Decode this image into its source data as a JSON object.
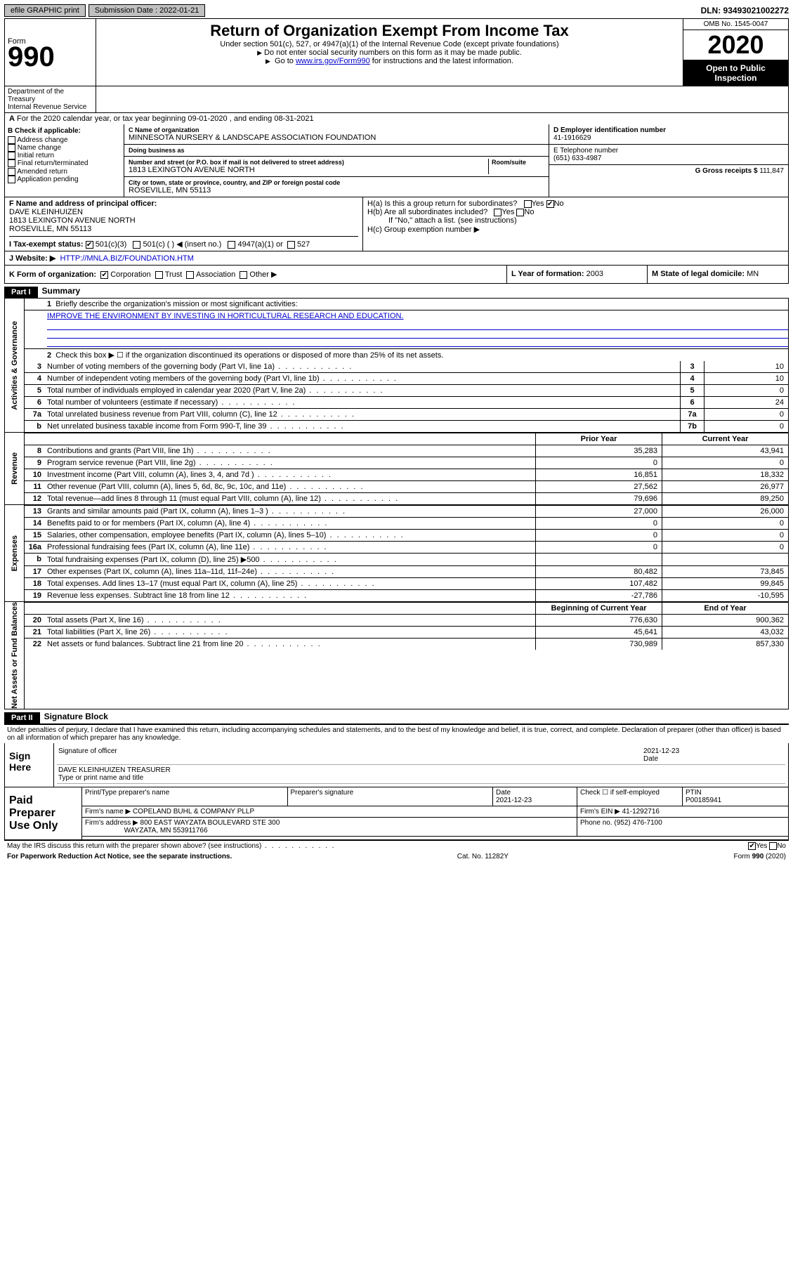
{
  "topbar": {
    "efile": "efile GRAPHIC print",
    "submission_label": "Submission Date : 2022-01-21",
    "dln": "DLN: 93493021002272"
  },
  "header": {
    "form_word": "Form",
    "form_num": "990",
    "title": "Return of Organization Exempt From Income Tax",
    "subtitle1": "Under section 501(c), 527, or 4947(a)(1) of the Internal Revenue Code (except private foundations)",
    "subtitle2": "Do not enter social security numbers on this form as it may be made public.",
    "subtitle3_pre": "Go to ",
    "subtitle3_link": "www.irs.gov/Form990",
    "subtitle3_post": " for instructions and the latest information.",
    "omb": "OMB No. 1545-0047",
    "year": "2020",
    "open_public": "Open to Public Inspection",
    "dept1": "Department of the Treasury",
    "dept2": "Internal Revenue Service"
  },
  "line_a": "For the 2020 calendar year, or tax year beginning 09-01-2020   , and ending 08-31-2021",
  "boxB": {
    "label": "B Check if applicable:",
    "opts": [
      "Address change",
      "Name change",
      "Initial return",
      "Final return/terminated",
      "Amended return",
      "Application pending"
    ]
  },
  "boxC": {
    "name_lbl": "C Name of organization",
    "name": "MINNESOTA NURSERY & LANDSCAPE ASSOCIATION FOUNDATION",
    "dba_lbl": "Doing business as",
    "addr_lbl": "Number and street (or P.O. box if mail is not delivered to street address)",
    "room_lbl": "Room/suite",
    "addr": "1813 LEXINGTON AVENUE NORTH",
    "city_lbl": "City or town, state or province, country, and ZIP or foreign postal code",
    "city": "ROSEVILLE, MN  55113"
  },
  "boxD": {
    "lbl": "D Employer identification number",
    "val": "41-1916629"
  },
  "boxE": {
    "lbl": "E Telephone number",
    "val": "(651) 633-4987"
  },
  "boxG": {
    "lbl": "G Gross receipts $",
    "val": "111,847"
  },
  "boxF": {
    "lbl": "F  Name and address of principal officer:",
    "name": "DAVE KLEINHUIZEN",
    "addr1": "1813 LEXINGTON AVENUE NORTH",
    "addr2": "ROSEVILLE, MN  55113"
  },
  "boxH": {
    "ha": "H(a)  Is this a group return for subordinates?",
    "hb": "H(b)  Are all subordinates included?",
    "hb_note": "If \"No,\" attach a list. (see instructions)",
    "hc": "H(c)  Group exemption number ▶",
    "yes": "Yes",
    "no": "No"
  },
  "boxI": {
    "lbl": "I   Tax-exempt status:",
    "c3": "501(c)(3)",
    "c": "501(c) (   ) ◀ (insert no.)",
    "a1": "4947(a)(1) or",
    "s527": "527"
  },
  "boxJ": {
    "lbl": "J   Website: ▶",
    "val": "HTTP://MNLA.BIZ/FOUNDATION.HTM"
  },
  "boxK": {
    "lbl": "K Form of organization:",
    "corp": "Corporation",
    "trust": "Trust",
    "assoc": "Association",
    "other": "Other ▶"
  },
  "boxL": {
    "lbl": "L Year of formation:",
    "val": "2003"
  },
  "boxM": {
    "lbl": "M State of legal domicile:",
    "val": "MN"
  },
  "part1": {
    "tag": "Part I",
    "title": "Summary",
    "side_ag": "Activities & Governance",
    "side_rev": "Revenue",
    "side_exp": "Expenses",
    "side_net": "Net Assets or Fund Balances",
    "l1": "Briefly describe the organization's mission or most significant activities:",
    "l1_val": "IMPROVE THE ENVIRONMENT BY INVESTING IN HORTICULTURAL RESEARCH AND EDUCATION.",
    "l2": "Check this box ▶ ☐  if the organization discontinued its operations or disposed of more than 25% of its net assets.",
    "lines_ag": [
      {
        "n": "3",
        "d": "Number of voting members of the governing body (Part VI, line 1a)",
        "box": "3",
        "v": "10"
      },
      {
        "n": "4",
        "d": "Number of independent voting members of the governing body (Part VI, line 1b)",
        "box": "4",
        "v": "10"
      },
      {
        "n": "5",
        "d": "Total number of individuals employed in calendar year 2020 (Part V, line 2a)",
        "box": "5",
        "v": "0"
      },
      {
        "n": "6",
        "d": "Total number of volunteers (estimate if necessary)",
        "box": "6",
        "v": "24"
      },
      {
        "n": "7a",
        "d": "Total unrelated business revenue from Part VIII, column (C), line 12",
        "box": "7a",
        "v": "0"
      },
      {
        "n": "b",
        "d": "Net unrelated business taxable income from Form 990-T, line 39",
        "box": "7b",
        "v": "0"
      }
    ],
    "hdr_prior": "Prior Year",
    "hdr_current": "Current Year",
    "lines_rev": [
      {
        "n": "8",
        "d": "Contributions and grants (Part VIII, line 1h)",
        "c1": "35,283",
        "c2": "43,941"
      },
      {
        "n": "9",
        "d": "Program service revenue (Part VIII, line 2g)",
        "c1": "0",
        "c2": "0"
      },
      {
        "n": "10",
        "d": "Investment income (Part VIII, column (A), lines 3, 4, and 7d )",
        "c1": "16,851",
        "c2": "18,332"
      },
      {
        "n": "11",
        "d": "Other revenue (Part VIII, column (A), lines 5, 6d, 8c, 9c, 10c, and 11e)",
        "c1": "27,562",
        "c2": "26,977"
      },
      {
        "n": "12",
        "d": "Total revenue—add lines 8 through 11 (must equal Part VIII, column (A), line 12)",
        "c1": "79,696",
        "c2": "89,250"
      }
    ],
    "lines_exp": [
      {
        "n": "13",
        "d": "Grants and similar amounts paid (Part IX, column (A), lines 1–3 )",
        "c1": "27,000",
        "c2": "26,000"
      },
      {
        "n": "14",
        "d": "Benefits paid to or for members (Part IX, column (A), line 4)",
        "c1": "0",
        "c2": "0"
      },
      {
        "n": "15",
        "d": "Salaries, other compensation, employee benefits (Part IX, column (A), lines 5–10)",
        "c1": "0",
        "c2": "0"
      },
      {
        "n": "16a",
        "d": "Professional fundraising fees (Part IX, column (A), line 11e)",
        "c1": "0",
        "c2": "0"
      },
      {
        "n": "b",
        "d": "Total fundraising expenses (Part IX, column (D), line 25) ▶500",
        "c1": "",
        "c2": ""
      },
      {
        "n": "17",
        "d": "Other expenses (Part IX, column (A), lines 11a–11d, 11f–24e)",
        "c1": "80,482",
        "c2": "73,845"
      },
      {
        "n": "18",
        "d": "Total expenses. Add lines 13–17 (must equal Part IX, column (A), line 25)",
        "c1": "107,482",
        "c2": "99,845"
      },
      {
        "n": "19",
        "d": "Revenue less expenses. Subtract line 18 from line 12",
        "c1": "-27,786",
        "c2": "-10,595"
      }
    ],
    "hdr_begin": "Beginning of Current Year",
    "hdr_end": "End of Year",
    "lines_net": [
      {
        "n": "20",
        "d": "Total assets (Part X, line 16)",
        "c1": "776,630",
        "c2": "900,362"
      },
      {
        "n": "21",
        "d": "Total liabilities (Part X, line 26)",
        "c1": "45,641",
        "c2": "43,032"
      },
      {
        "n": "22",
        "d": "Net assets or fund balances. Subtract line 21 from line 20",
        "c1": "730,989",
        "c2": "857,330"
      }
    ]
  },
  "part2": {
    "tag": "Part II",
    "title": "Signature Block",
    "perjury": "Under penalties of perjury, I declare that I have examined this return, including accompanying schedules and statements, and to the best of my knowledge and belief, it is true, correct, and complete. Declaration of preparer (other than officer) is based on all information of which preparer has any knowledge.",
    "sign_here": "Sign Here",
    "sig_officer": "Signature of officer",
    "sig_date": "2021-12-23",
    "date_lbl": "Date",
    "officer_name": "DAVE KLEINHUIZEN  TREASURER",
    "type_lbl": "Type or print name and title",
    "paid_lbl": "Paid Preparer Use Only",
    "print_name_lbl": "Print/Type preparer's name",
    "prep_sig_lbl": "Preparer's signature",
    "prep_date": "2021-12-23",
    "check_self": "Check ☐ if self-employed",
    "ptin_lbl": "PTIN",
    "ptin": "P00185941",
    "firm_name_lbl": "Firm's name    ▶",
    "firm_name": "COPELAND BUHL & COMPANY PLLP",
    "firm_ein_lbl": "Firm's EIN ▶",
    "firm_ein": "41-1292716",
    "firm_addr_lbl": "Firm's address ▶",
    "firm_addr1": "800 EAST WAYZATA BOULEVARD STE 300",
    "firm_addr2": "WAYZATA, MN  553911766",
    "phone_lbl": "Phone no.",
    "phone": "(952) 476-7100",
    "discuss": "May the IRS discuss this return with the preparer shown above? (see instructions)"
  },
  "footer": {
    "left": "For Paperwork Reduction Act Notice, see the separate instructions.",
    "mid": "Cat. No. 11282Y",
    "right": "Form 990 (2020)"
  }
}
